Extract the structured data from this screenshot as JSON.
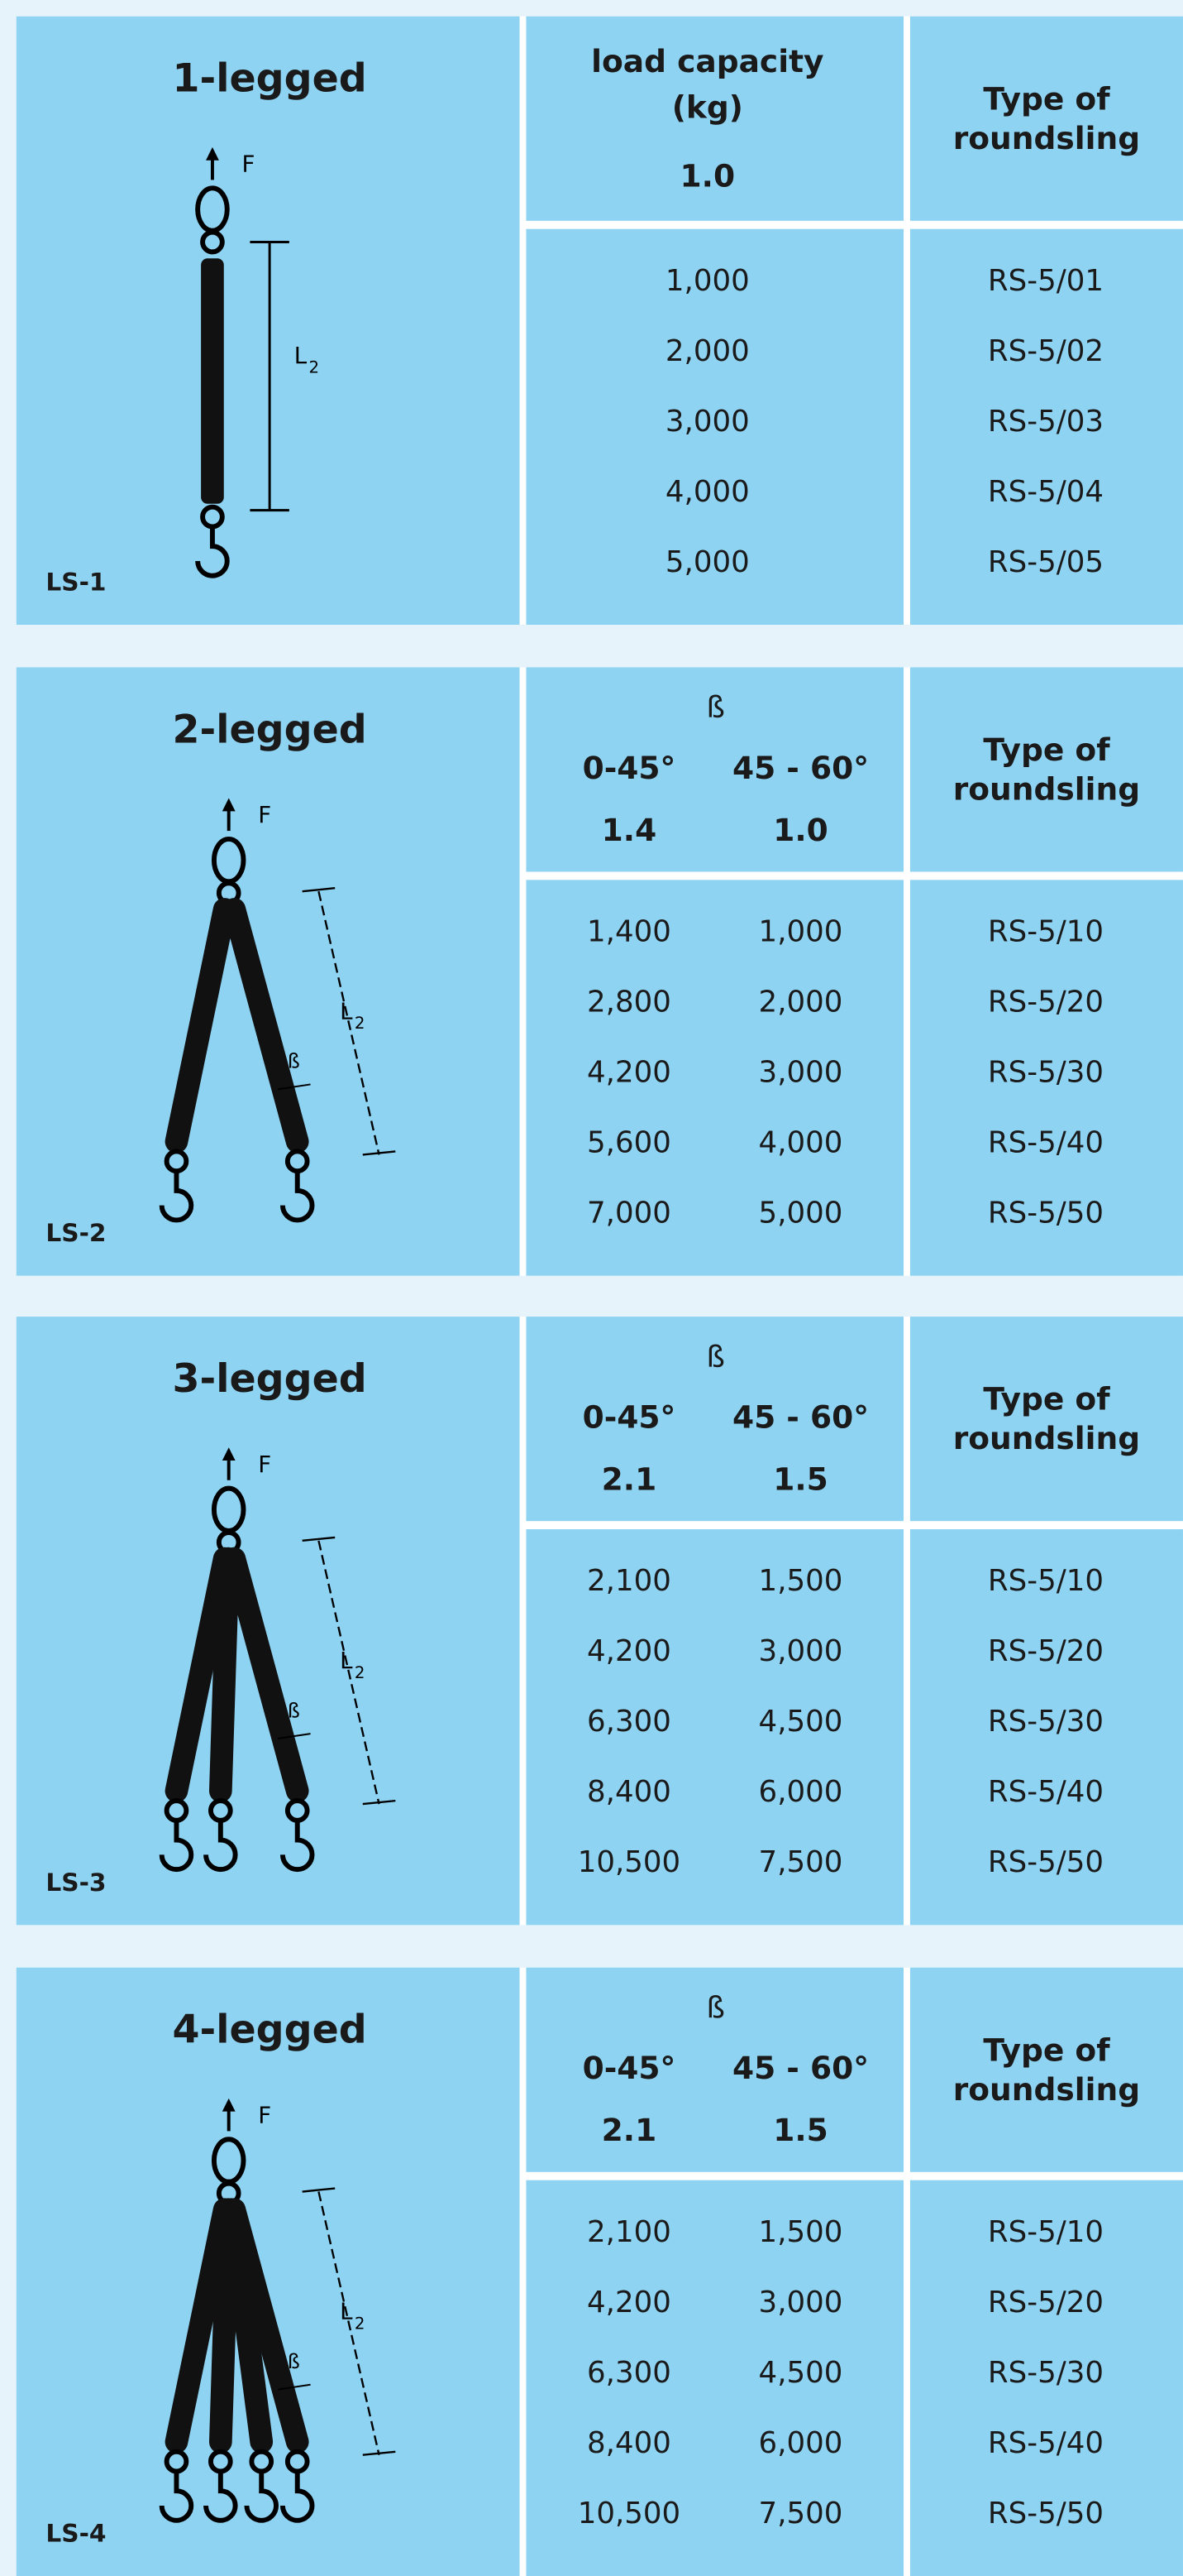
{
  "panels": [
    {
      "title": "1-legged",
      "code": "LS-1",
      "diagram": {
        "force": "F",
        "length": "L",
        "length_sub": "2"
      },
      "header": {
        "capacity_label": [
          "load capacity",
          "(kg)"
        ],
        "factors": [
          "1.0"
        ]
      },
      "type_header": [
        "Type of",
        "roundsling"
      ],
      "rows": [
        [
          "1,000",
          "RS-5/01"
        ],
        [
          "2,000",
          "RS-5/02"
        ],
        [
          "3,000",
          "RS-5/03"
        ],
        [
          "4,000",
          "RS-5/04"
        ],
        [
          "5,000",
          "RS-5/05"
        ]
      ]
    },
    {
      "title": "2-legged",
      "code": "LS-2",
      "diagram": {
        "force": "F",
        "length": "L",
        "length_sub": "2",
        "angle": "ß"
      },
      "header": {
        "angle": "ß",
        "ranges": [
          "0-45°",
          "45 - 60°"
        ],
        "factors": [
          "1.4",
          "1.0"
        ]
      },
      "type_header": [
        "Type of",
        "roundsling"
      ],
      "rows": [
        [
          "1,400",
          "1,000",
          "RS-5/10"
        ],
        [
          "2,800",
          "2,000",
          "RS-5/20"
        ],
        [
          "4,200",
          "3,000",
          "RS-5/30"
        ],
        [
          "5,600",
          "4,000",
          "RS-5/40"
        ],
        [
          "7,000",
          "5,000",
          "RS-5/50"
        ]
      ]
    },
    {
      "title": "3-legged",
      "code": "LS-3",
      "diagram": {
        "force": "F",
        "length": "L",
        "length_sub": "2",
        "angle": "ß"
      },
      "header": {
        "angle": "ß",
        "ranges": [
          "0-45°",
          "45 - 60°"
        ],
        "factors": [
          "2.1",
          "1.5"
        ]
      },
      "type_header": [
        "Type of",
        "roundsling"
      ],
      "rows": [
        [
          "2,100",
          "1,500",
          "RS-5/10"
        ],
        [
          "4,200",
          "3,000",
          "RS-5/20"
        ],
        [
          "6,300",
          "4,500",
          "RS-5/30"
        ],
        [
          "8,400",
          "6,000",
          "RS-5/40"
        ],
        [
          "10,500",
          "7,500",
          "RS-5/50"
        ]
      ]
    },
    {
      "title": "4-legged",
      "code": "LS-4",
      "diagram": {
        "force": "F",
        "length": "L",
        "length_sub": "2",
        "angle": "ß"
      },
      "header": {
        "angle": "ß",
        "ranges": [
          "0-45°",
          "45 - 60°"
        ],
        "factors": [
          "2.1",
          "1.5"
        ]
      },
      "type_header": [
        "Type of",
        "roundsling"
      ],
      "rows": [
        [
          "2,100",
          "1,500",
          "RS-5/10"
        ],
        [
          "4,200",
          "3,000",
          "RS-5/20"
        ],
        [
          "6,300",
          "4,500",
          "RS-5/30"
        ],
        [
          "8,400",
          "6,000",
          "RS-5/40"
        ],
        [
          "10,500",
          "7,500",
          "RS-5/50"
        ]
      ]
    }
  ]
}
